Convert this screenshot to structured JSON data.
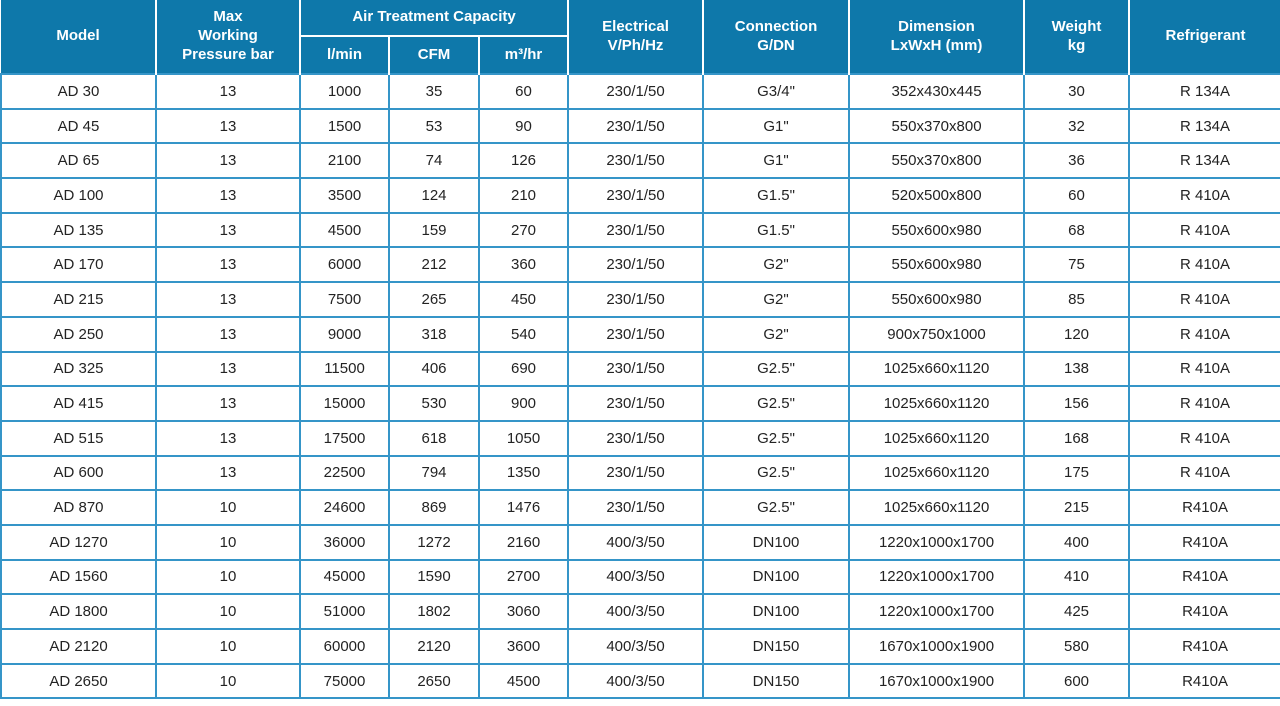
{
  "colors": {
    "header_bg": "#0e78aa",
    "header_text": "#ffffff",
    "grid_border": "#3595c8",
    "body_text": "#232323",
    "body_bg": "#ffffff"
  },
  "table": {
    "header": {
      "model": "Model",
      "pressure": "Max\nWorking\nPressure bar",
      "capacity_group": "Air Treatment Capacity",
      "capacity_lmin": "l/min",
      "capacity_cfm": "CFM",
      "capacity_m3hr": "m³/hr",
      "electrical": "Electrical\nV/Ph/Hz",
      "connection": "Connection\nG/DN",
      "dimension": "Dimension\nLxWxH (mm)",
      "weight": "Weight\nkg",
      "refrigerant": "Refrigerant"
    },
    "column_keys": [
      "model",
      "pressure",
      "lmin",
      "cfm",
      "m3hr",
      "electrical",
      "connection",
      "dimension",
      "weight",
      "refrigerant"
    ],
    "rows": [
      [
        "AD 30",
        "13",
        "1000",
        "35",
        "60",
        "230/1/50",
        "G3/4\"",
        "352x430x445",
        "30",
        "R 134A"
      ],
      [
        "AD 45",
        "13",
        "1500",
        "53",
        "90",
        "230/1/50",
        "G1\"",
        "550x370x800",
        "32",
        "R 134A"
      ],
      [
        "AD 65",
        "13",
        "2100",
        "74",
        "126",
        "230/1/50",
        "G1\"",
        "550x370x800",
        "36",
        "R 134A"
      ],
      [
        "AD 100",
        "13",
        "3500",
        "124",
        "210",
        "230/1/50",
        "G1.5\"",
        "520x500x800",
        "60",
        "R 410A"
      ],
      [
        "AD 135",
        "13",
        "4500",
        "159",
        "270",
        "230/1/50",
        "G1.5\"",
        "550x600x980",
        "68",
        "R 410A"
      ],
      [
        "AD 170",
        "13",
        "6000",
        "212",
        "360",
        "230/1/50",
        "G2\"",
        "550x600x980",
        "75",
        "R 410A"
      ],
      [
        "AD 215",
        "13",
        "7500",
        "265",
        "450",
        "230/1/50",
        "G2\"",
        "550x600x980",
        "85",
        "R 410A"
      ],
      [
        "AD 250",
        "13",
        "9000",
        "318",
        "540",
        "230/1/50",
        "G2\"",
        "900x750x1000",
        "120",
        "R 410A"
      ],
      [
        "AD 325",
        "13",
        "11500",
        "406",
        "690",
        "230/1/50",
        "G2.5\"",
        "1025x660x1120",
        "138",
        "R 410A"
      ],
      [
        "AD 415",
        "13",
        "15000",
        "530",
        "900",
        "230/1/50",
        "G2.5\"",
        "1025x660x1120",
        "156",
        "R 410A"
      ],
      [
        "AD 515",
        "13",
        "17500",
        "618",
        "1050",
        "230/1/50",
        "G2.5\"",
        "1025x660x1120",
        "168",
        "R 410A"
      ],
      [
        "AD 600",
        "13",
        "22500",
        "794",
        "1350",
        "230/1/50",
        "G2.5\"",
        "1025x660x1120",
        "175",
        "R 410A"
      ],
      [
        "AD 870",
        "10",
        "24600",
        "869",
        "1476",
        "230/1/50",
        "G2.5\"",
        "1025x660x1120",
        "215",
        "R410A"
      ],
      [
        "AD 1270",
        "10",
        "36000",
        "1272",
        "2160",
        "400/3/50",
        "DN100",
        "1220x1000x1700",
        "400",
        "R410A"
      ],
      [
        "AD 1560",
        "10",
        "45000",
        "1590",
        "2700",
        "400/3/50",
        "DN100",
        "1220x1000x1700",
        "410",
        "R410A"
      ],
      [
        "AD 1800",
        "10",
        "51000",
        "1802",
        "3060",
        "400/3/50",
        "DN100",
        "1220x1000x1700",
        "425",
        "R410A"
      ],
      [
        "AD 2120",
        "10",
        "60000",
        "2120",
        "3600",
        "400/3/50",
        "DN150",
        "1670x1000x1900",
        "580",
        "R410A"
      ],
      [
        "AD 2650",
        "10",
        "75000",
        "2650",
        "4500",
        "400/3/50",
        "DN150",
        "1670x1000x1900",
        "600",
        "R410A"
      ]
    ]
  }
}
